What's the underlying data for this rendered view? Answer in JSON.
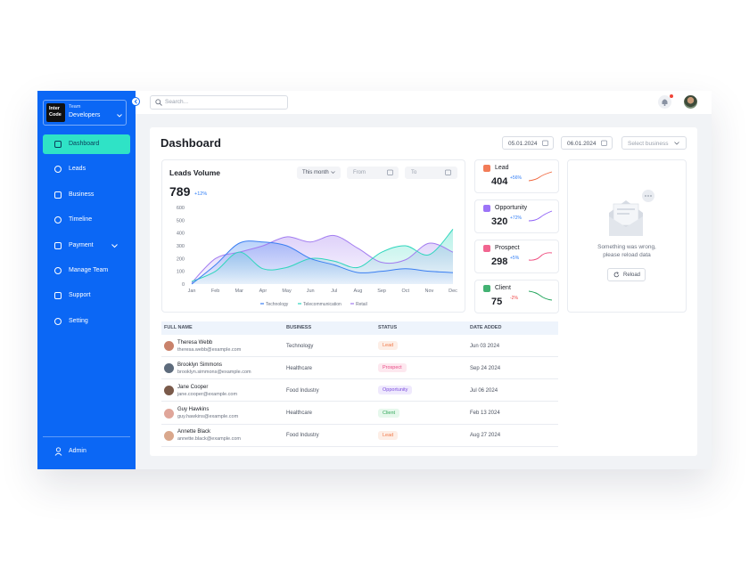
{
  "sidebar": {
    "logo": [
      "Inter",
      "Code"
    ],
    "team_label": "Team",
    "team_name": "Developers",
    "nav": [
      "Dashboard",
      "Leads",
      "Business",
      "Timeline",
      "Payment",
      "Manage Team",
      "Support",
      "Setting"
    ],
    "user": "Admin"
  },
  "header": {
    "search_placeholder": "Search..."
  },
  "dashboard": {
    "title": "Dashboard",
    "date_from": "05.01.2024",
    "date_to": "06.01.2024",
    "business_select": "Select business"
  },
  "leads_card": {
    "title": "Leads Volume",
    "period": "This month",
    "from": "From",
    "to": "To",
    "total": 789,
    "change": "+12%"
  },
  "chart_data": {
    "type": "area",
    "categories": [
      "Jan",
      "Feb",
      "Mar",
      "Apr",
      "May",
      "Jun",
      "Jul",
      "Aug",
      "Sep",
      "Oct",
      "Nov",
      "Dec"
    ],
    "series": [
      {
        "name": "Technology",
        "color": "#3b7ff2",
        "values": [
          0,
          150,
          320,
          330,
          300,
          200,
          150,
          90,
          100,
          120,
          100,
          90
        ]
      },
      {
        "name": "Telecommunication",
        "color": "#2fd6bd",
        "values": [
          20,
          100,
          250,
          120,
          130,
          200,
          180,
          130,
          250,
          300,
          230,
          430
        ]
      },
      {
        "name": "Retail",
        "color": "#a27cf0",
        "values": [
          10,
          200,
          250,
          300,
          370,
          330,
          380,
          280,
          170,
          190,
          320,
          250
        ]
      }
    ],
    "ylim": [
      0,
      600
    ],
    "yticks": [
      0,
      100,
      200,
      300,
      400,
      500,
      600
    ],
    "grid": false
  },
  "stats": [
    {
      "label": "Lead",
      "value": 404,
      "change": "+56%"
    },
    {
      "label": "Opportunity",
      "value": 320,
      "change": "+72%"
    },
    {
      "label": "Prospect",
      "value": 298,
      "change": "+5%"
    },
    {
      "label": "Client",
      "value": 75,
      "change": "-2%"
    }
  ],
  "error_card": {
    "message": [
      "Something was wrong,",
      "please reload data"
    ],
    "button": "Reload"
  },
  "table": {
    "headers": [
      "FULL NAME",
      "BUSINESS",
      "STATUS",
      "DATE ADDED"
    ],
    "rows": [
      {
        "name": "Theresa Webb",
        "email": "theresa.webb@example.com",
        "business": "Technology",
        "status": "Lead",
        "date": "Jun 03 2024"
      },
      {
        "name": "Brooklyn Simmons",
        "email": "brooklyn.simmons@example.com",
        "business": "Healthcare",
        "status": "Prospect",
        "date": "Sep 24 2024"
      },
      {
        "name": "Jane Cooper",
        "email": "jane.cooper@example.com",
        "business": "Food Industry",
        "status": "Opportunity",
        "date": "Jul 06 2024"
      },
      {
        "name": "Guy Hawkins",
        "email": "guy.hawkins@example.com",
        "business": "Healthcare",
        "status": "Client",
        "date": "Feb 13 2024"
      },
      {
        "name": "Annette Black",
        "email": "annette.black@example.com",
        "business": "Food Industry",
        "status": "Lead",
        "date": "Aug 27 2024"
      }
    ]
  }
}
